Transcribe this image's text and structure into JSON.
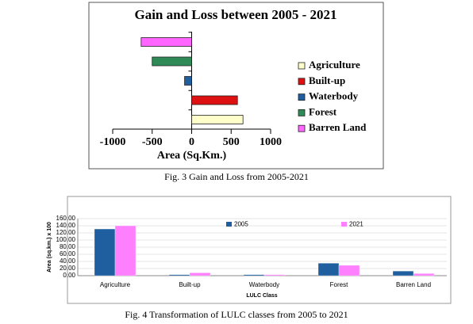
{
  "chart_data": [
    {
      "type": "hbar",
      "title": "Gain and Loss between 2005 - 2021",
      "xlabel": "Area (Sq.Km.)",
      "categories": [
        "Agriculture",
        "Built-up",
        "Waterbody",
        "Forest",
        "Barren Land"
      ],
      "values": [
        650,
        580,
        -90,
        -500,
        -640
      ],
      "colors": [
        "#ffffcc",
        "#dd1111",
        "#1f5fa0",
        "#2e8b57",
        "#ff66ff"
      ],
      "xlim": [
        -1000,
        1000
      ],
      "xticks": [
        -1000,
        -500,
        0,
        500,
        1000
      ],
      "caption": "Fig. 3  Gain and Loss from 2005-2021"
    },
    {
      "type": "bar",
      "ylabel": "Area (sq.km.) x 100",
      "xlabel": "LULC Class",
      "categories": [
        "Agriculture",
        "Built-up",
        "Waterbody",
        "Forest",
        "Barren Land"
      ],
      "series": [
        {
          "name": "2005",
          "color": "#1f5fa0",
          "values": [
            131,
            3,
            3,
            35,
            13
          ]
        },
        {
          "name": "2021",
          "color": "#ff80ff",
          "values": [
            140,
            8,
            3,
            29,
            6
          ]
        }
      ],
      "ylim": [
        0,
        160
      ],
      "yticks": [
        {
          "value": 0,
          "label": "0.00"
        },
        {
          "value": 20,
          "label": "20.00"
        },
        {
          "value": 40,
          "label": "40.00"
        },
        {
          "value": 60,
          "label": "60.00"
        },
        {
          "value": 80,
          "label": "80.00"
        },
        {
          "value": 100,
          "label": "100.00"
        },
        {
          "value": 120,
          "label": "120.00"
        },
        {
          "value": 140,
          "label": "140.00"
        },
        {
          "value": 160,
          "label": "160.00"
        }
      ],
      "grid": true,
      "caption": "Fig. 4  Transformation of LULC classes from 2005 to 2021"
    }
  ]
}
